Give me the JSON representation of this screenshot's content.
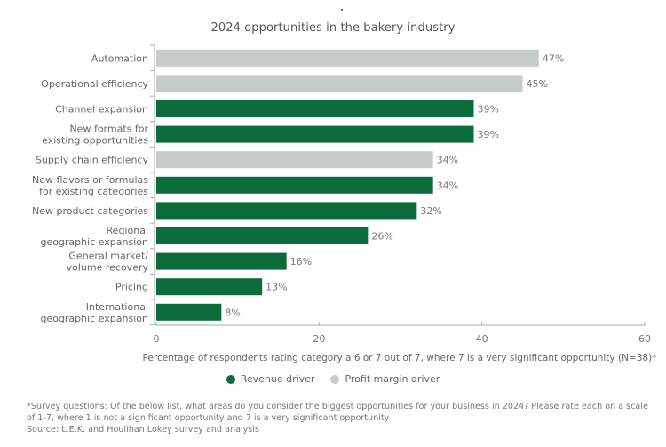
{
  "chart_data": {
    "type": "bar",
    "orientation": "horizontal",
    "title": "2024 opportunities in the bakery industry",
    "xlabel": "Percentage of respondents rating category a 6 or 7 out of 7, where 7 is a very significant opportunity (N=38)*",
    "ylabel": "",
    "xlim": [
      0,
      60
    ],
    "xticks": [
      0,
      20,
      40,
      60
    ],
    "grid": false,
    "legend_position": "bottom-center",
    "value_suffix": "%",
    "categories": [
      [
        "Automation"
      ],
      [
        "Operational efficiency"
      ],
      [
        "Channel expansion"
      ],
      [
        "New formats for",
        "existing opportunities"
      ],
      [
        "Supply chain efficiency"
      ],
      [
        "New flavors or formulas",
        "for existing categories"
      ],
      [
        "New product categories"
      ],
      [
        "Regional",
        "geographic expansion"
      ],
      [
        "General market/",
        "volume recovery"
      ],
      [
        "Pricing"
      ],
      [
        "International",
        "geographic expansion"
      ]
    ],
    "values": [
      47,
      45,
      39,
      39,
      34,
      34,
      32,
      26,
      16,
      13,
      8
    ],
    "series_type": [
      "profit",
      "profit",
      "revenue",
      "revenue",
      "profit",
      "revenue",
      "revenue",
      "revenue",
      "revenue",
      "revenue",
      "revenue"
    ],
    "series": [
      {
        "key": "revenue",
        "name": "Revenue driver",
        "color": "#0b6b3a"
      },
      {
        "key": "profit",
        "name": "Profit margin driver",
        "color": "#c5ccca"
      }
    ]
  },
  "footnote": {
    "line1": "*Survey questions: Of the below list, what areas do you consider the biggest opportunities for your business in 2024? Please rate each on a scale",
    "line2": "of 1-7, where 1 is not a significant opportunity and 7 is a very significant opportunity",
    "source": "Source: L.E.K. and Houlihan Lokey survey and analysis"
  }
}
